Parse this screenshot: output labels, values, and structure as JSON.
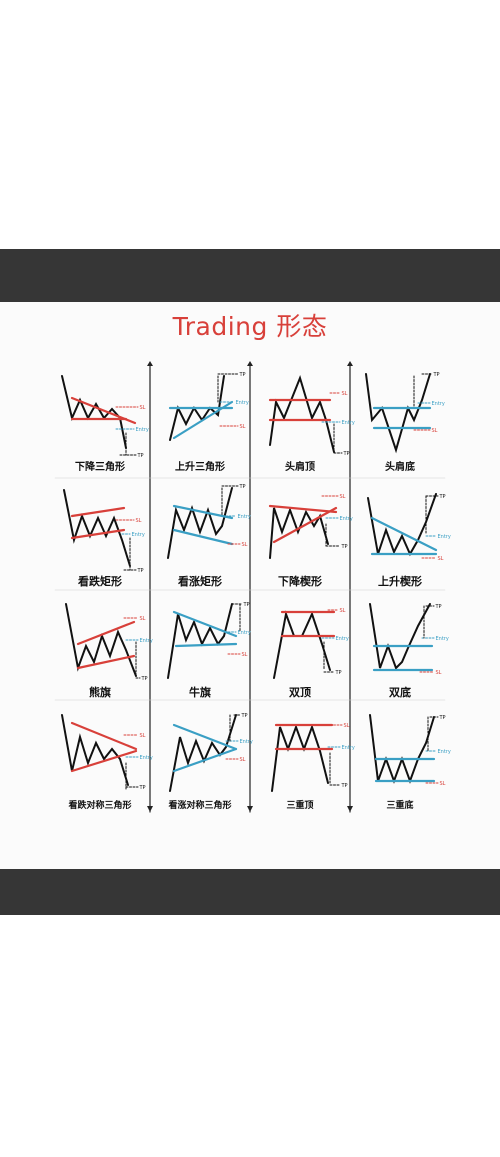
{
  "title": "Trading 形态",
  "colors": {
    "bearish": "#d8403a",
    "bullish": "#3a9fc4",
    "price": "#111111",
    "bars": "#363636"
  },
  "markers": {
    "sl": "SL",
    "entry": "Entry",
    "tp": "TP"
  },
  "patterns": [
    {
      "name": "下降三角形"
    },
    {
      "name": "上升三角形"
    },
    {
      "name": "头肩顶"
    },
    {
      "name": "头肩底"
    },
    {
      "name": "看跌矩形"
    },
    {
      "name": "看涨矩形"
    },
    {
      "name": "下降楔形"
    },
    {
      "name": "上升楔形"
    },
    {
      "name": "熊旗"
    },
    {
      "name": "牛旗"
    },
    {
      "name": "双顶"
    },
    {
      "name": "双底"
    },
    {
      "name": "看跌对称三角形"
    },
    {
      "name": "看涨对称三角形"
    },
    {
      "name": "三重顶"
    },
    {
      "name": "三重底"
    }
  ]
}
